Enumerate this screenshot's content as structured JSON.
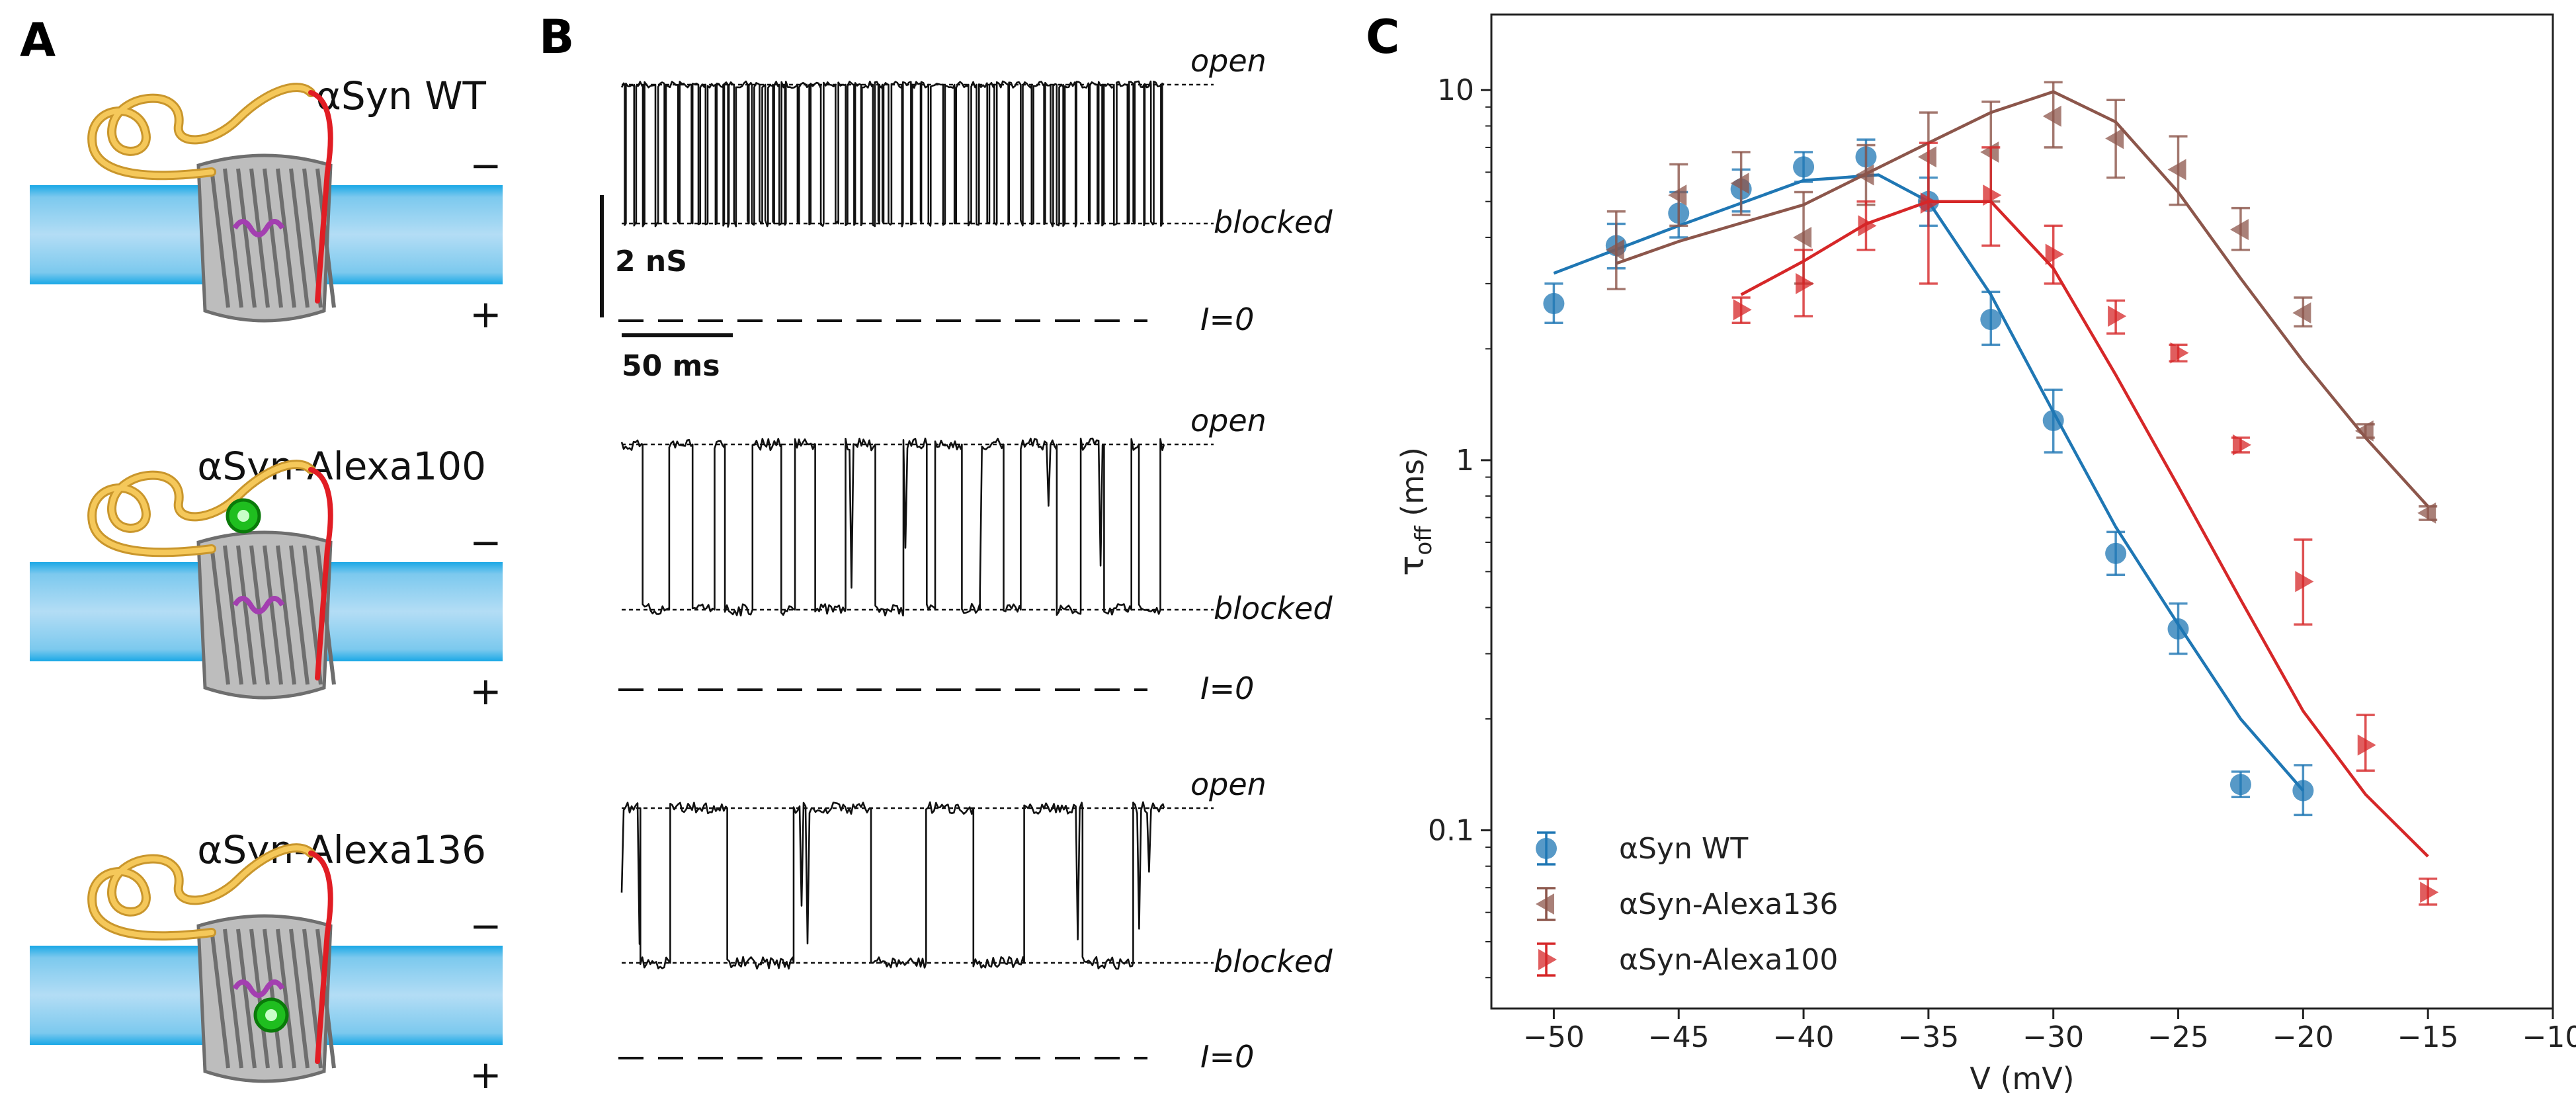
{
  "panel_labels": {
    "a": "A",
    "b": "B",
    "c": "C"
  },
  "panel_a": {
    "constructs": [
      {
        "label": "αSyn WT",
        "dye": "none"
      },
      {
        "label": "αSyn-Alexa100",
        "dye": "top"
      },
      {
        "label": "αSyn-Alexa136",
        "dye": "bottom"
      }
    ],
    "minus_sign": "−",
    "plus_sign": "+",
    "colors": {
      "membrane": "#6ec6f0",
      "membrane_edge": "#1aa8e6",
      "protein_tail": "#e11d24",
      "unfolded_chain": "#f5c85a",
      "dye": "#1fbe1f",
      "barrel": "#9a9a9a",
      "helix": "#a33fb0"
    }
  },
  "panel_b": {
    "open_label": "open",
    "blocked_label": "blocked",
    "zero_label": "I=0",
    "scale_conductance": "2 nS",
    "scale_time": "50 ms",
    "traces": [
      {
        "name": "αSyn WT",
        "block_events": 62
      },
      {
        "name": "αSyn-Alexa100",
        "block_events": 22
      },
      {
        "name": "αSyn-Alexa136",
        "block_events": 9
      }
    ]
  },
  "chart_data": {
    "type": "scatter",
    "title": "",
    "xlabel": "V (mV)",
    "ylabel": "τ",
    "ylabel_sub": "off",
    "ylabel_unit": "(ms)",
    "xlim": [
      -52.5,
      -10
    ],
    "ylim": [
      0.033,
      16
    ],
    "yscale": "log",
    "xticks": [
      -50,
      -45,
      -40,
      -35,
      -30,
      -25,
      -20,
      -15,
      -10
    ],
    "xtick_labels": [
      "−50",
      "−45",
      "−40",
      "−35",
      "−30",
      "−25",
      "−20",
      "−15",
      "−10"
    ],
    "yticks": [
      0.1,
      1,
      10
    ],
    "ytick_labels": [
      "0.1",
      "1",
      "10"
    ],
    "legend_position": "bottom-left",
    "series": [
      {
        "name": "αSyn WT",
        "color": "#1f77b4",
        "marker": "circle",
        "points": [
          {
            "x": -50,
            "y": 2.65,
            "lo": 2.35,
            "hi": 3.0
          },
          {
            "x": -47.5,
            "y": 3.8,
            "lo": 3.3,
            "hi": 4.35
          },
          {
            "x": -45,
            "y": 4.65,
            "lo": 4.0,
            "hi": 5.3
          },
          {
            "x": -42.5,
            "y": 5.4,
            "lo": 4.7,
            "hi": 6.1
          },
          {
            "x": -40,
            "y": 6.2,
            "lo": 5.65,
            "hi": 6.8
          },
          {
            "x": -37.5,
            "y": 6.6,
            "lo": 5.9,
            "hi": 7.35
          },
          {
            "x": -35,
            "y": 5.0,
            "lo": 4.3,
            "hi": 5.8
          },
          {
            "x": -32.5,
            "y": 2.4,
            "lo": 2.05,
            "hi": 2.85
          },
          {
            "x": -30,
            "y": 1.28,
            "lo": 1.05,
            "hi": 1.55
          },
          {
            "x": -27.5,
            "y": 0.56,
            "lo": 0.49,
            "hi": 0.64
          },
          {
            "x": -25,
            "y": 0.35,
            "lo": 0.3,
            "hi": 0.41
          },
          {
            "x": -22.5,
            "y": 0.133,
            "lo": 0.123,
            "hi": 0.144
          },
          {
            "x": -20,
            "y": 0.128,
            "lo": 0.11,
            "hi": 0.15
          }
        ],
        "fit": {
          "x": [
            -50,
            -45,
            -40,
            -37,
            -35,
            -32.5,
            -30,
            -27.5,
            -25,
            -22.5,
            -20
          ],
          "y": [
            3.2,
            4.3,
            5.7,
            5.9,
            5.0,
            2.8,
            1.35,
            0.66,
            0.36,
            0.2,
            0.128
          ]
        }
      },
      {
        "name": "αSyn-Alexa136",
        "color": "#8c564b",
        "marker": "triangle-left",
        "points": [
          {
            "x": -47.5,
            "y": 3.7,
            "lo": 2.9,
            "hi": 4.7
          },
          {
            "x": -45,
            "y": 5.2,
            "lo": 4.3,
            "hi": 6.3
          },
          {
            "x": -42.5,
            "y": 5.6,
            "lo": 4.6,
            "hi": 6.8
          },
          {
            "x": -40,
            "y": 4.0,
            "lo": 3.0,
            "hi": 5.3
          },
          {
            "x": -37.5,
            "y": 5.9,
            "lo": 4.9,
            "hi": 7.1
          },
          {
            "x": -35,
            "y": 6.6,
            "lo": 5.0,
            "hi": 8.7
          },
          {
            "x": -32.5,
            "y": 6.8,
            "lo": 5.0,
            "hi": 9.3
          },
          {
            "x": -30,
            "y": 8.5,
            "lo": 7.0,
            "hi": 10.5
          },
          {
            "x": -27.5,
            "y": 7.4,
            "lo": 5.8,
            "hi": 9.4
          },
          {
            "x": -25,
            "y": 6.1,
            "lo": 4.9,
            "hi": 7.5
          },
          {
            "x": -22.5,
            "y": 4.2,
            "lo": 3.7,
            "hi": 4.8
          },
          {
            "x": -20,
            "y": 2.5,
            "lo": 2.3,
            "hi": 2.75
          },
          {
            "x": -17.5,
            "y": 1.2,
            "lo": 1.15,
            "hi": 1.25
          },
          {
            "x": -15,
            "y": 0.72,
            "lo": 0.69,
            "hi": 0.75
          }
        ],
        "fit": {
          "x": [
            -47.5,
            -45,
            -40,
            -35,
            -32.5,
            -30,
            -27.5,
            -25,
            -22.5,
            -20,
            -17.5,
            -15
          ],
          "y": [
            3.4,
            3.9,
            4.9,
            7.2,
            8.7,
            9.9,
            8.2,
            5.3,
            3.1,
            1.85,
            1.15,
            0.75
          ]
        }
      },
      {
        "name": "αSyn-Alexa100",
        "color": "#d62728",
        "marker": "triangle-right",
        "points": [
          {
            "x": -42.5,
            "y": 2.55,
            "lo": 2.35,
            "hi": 2.75
          },
          {
            "x": -40,
            "y": 3.0,
            "lo": 2.45,
            "hi": 3.7
          },
          {
            "x": -37.5,
            "y": 4.3,
            "lo": 3.7,
            "hi": 5.0
          },
          {
            "x": -35,
            "y": 4.95,
            "lo": 3.0,
            "hi": 7.2
          },
          {
            "x": -32.5,
            "y": 5.2,
            "lo": 3.8,
            "hi": 7.0
          },
          {
            "x": -30,
            "y": 3.6,
            "lo": 3.0,
            "hi": 4.3
          },
          {
            "x": -27.5,
            "y": 2.45,
            "lo": 2.2,
            "hi": 2.7
          },
          {
            "x": -25,
            "y": 1.95,
            "lo": 1.85,
            "hi": 2.05
          },
          {
            "x": -22.5,
            "y": 1.1,
            "lo": 1.05,
            "hi": 1.15
          },
          {
            "x": -20,
            "y": 0.47,
            "lo": 0.36,
            "hi": 0.61
          },
          {
            "x": -17.5,
            "y": 0.17,
            "lo": 0.145,
            "hi": 0.205
          },
          {
            "x": -15,
            "y": 0.068,
            "lo": 0.063,
            "hi": 0.074
          }
        ],
        "fit": {
          "x": [
            -42.5,
            -40,
            -37.5,
            -35,
            -32.5,
            -30,
            -27.5,
            -25,
            -22.5,
            -20,
            -17.5,
            -15
          ],
          "y": [
            2.8,
            3.45,
            4.35,
            5.0,
            5.0,
            3.3,
            1.7,
            0.85,
            0.42,
            0.21,
            0.125,
            0.085
          ]
        }
      }
    ]
  }
}
